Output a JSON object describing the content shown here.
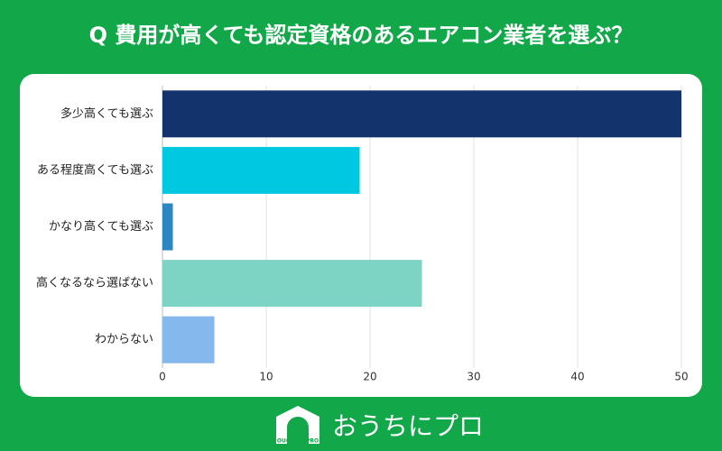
{
  "chart_data": {
    "type": "barh",
    "title": "Q 費用が高くても認定資格のあるエアコン業者を選ぶ？",
    "categories": [
      "多少高くても選ぶ",
      "ある程度高くても選ぶ",
      "かなり高くても選ぶ",
      "高くなるなら選ばない",
      "わからない"
    ],
    "values": [
      50,
      19,
      1,
      25,
      5
    ],
    "colors": [
      "#12336b",
      "#00c8e0",
      "#2e86c1",
      "#7dd3c4",
      "#85b8ec"
    ],
    "xlim": [
      0,
      50
    ],
    "xticks": [
      0,
      10,
      20,
      30,
      40,
      50
    ],
    "grid": true
  },
  "footer": {
    "logo_text": "おうちにプロ",
    "logo_small": "OUCHI ni PRO"
  }
}
